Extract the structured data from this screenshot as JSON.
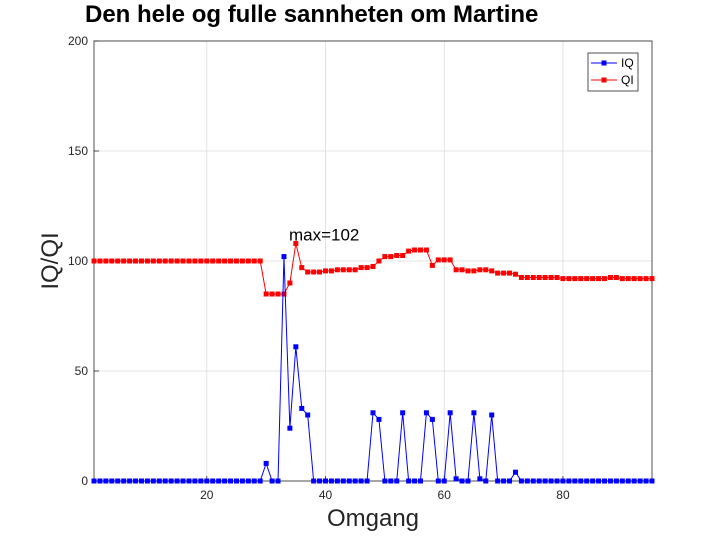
{
  "chart_data": {
    "type": "line",
    "title": "Den hele og fulle sannheten om Martine",
    "xlabel": "Omgang",
    "ylabel": "IQ/QI",
    "xlim": [
      1,
      95
    ],
    "ylim": [
      0,
      200
    ],
    "xticks": [
      20,
      40,
      60,
      80
    ],
    "yticks": [
      0,
      50,
      100,
      150,
      200
    ],
    "grid": true,
    "legend_position": "top-right",
    "annotation": {
      "text": "max=102",
      "x": 33,
      "y": 102
    },
    "x": [
      1,
      2,
      3,
      4,
      5,
      6,
      7,
      8,
      9,
      10,
      11,
      12,
      13,
      14,
      15,
      16,
      17,
      18,
      19,
      20,
      21,
      22,
      23,
      24,
      25,
      26,
      27,
      28,
      29,
      30,
      31,
      32,
      33,
      34,
      35,
      36,
      37,
      38,
      39,
      40,
      41,
      42,
      43,
      44,
      45,
      46,
      47,
      48,
      49,
      50,
      51,
      52,
      53,
      54,
      55,
      56,
      57,
      58,
      59,
      60,
      61,
      62,
      63,
      64,
      65,
      66,
      67,
      68,
      69,
      70,
      71,
      72,
      73,
      74,
      75,
      76,
      77,
      78,
      79,
      80,
      81,
      82,
      83,
      84,
      85,
      86,
      87,
      88,
      89,
      90,
      91,
      92,
      93,
      94,
      95
    ],
    "series": [
      {
        "name": "IQ",
        "color": "#0000ff",
        "values": [
          0,
          0,
          0,
          0,
          0,
          0,
          0,
          0,
          0,
          0,
          0,
          0,
          0,
          0,
          0,
          0,
          0,
          0,
          0,
          0,
          0,
          0,
          0,
          0,
          0,
          0,
          0,
          0,
          0,
          8,
          0,
          0,
          102,
          24,
          61,
          33,
          30,
          0,
          0,
          0,
          0,
          0,
          0,
          0,
          0,
          0,
          0,
          31,
          28,
          0,
          0,
          0,
          31,
          0,
          0,
          0,
          31,
          28,
          0,
          0,
          31,
          1,
          0,
          0,
          31,
          1,
          0,
          30,
          0,
          0,
          0,
          4,
          0,
          0,
          0,
          0,
          0,
          0,
          0,
          0,
          0,
          0,
          0,
          0,
          0,
          0,
          0,
          0,
          0,
          0,
          0,
          0,
          0,
          0,
          0
        ]
      },
      {
        "name": "QI",
        "color": "#ff0000",
        "values": [
          100,
          100,
          100,
          100,
          100,
          100,
          100,
          100,
          100,
          100,
          100,
          100,
          100,
          100,
          100,
          100,
          100,
          100,
          100,
          100,
          100,
          100,
          100,
          100,
          100,
          100,
          100,
          100,
          100,
          85,
          85,
          85,
          85,
          90,
          108,
          97,
          95,
          95,
          95,
          95.5,
          95.5,
          96,
          96,
          96,
          96,
          97,
          97,
          97.5,
          100,
          102,
          102,
          102.5,
          102.5,
          104.5,
          105,
          105,
          105,
          98,
          100.5,
          100.5,
          100.5,
          96,
          96,
          95.5,
          95.5,
          96,
          96,
          95.5,
          94.5,
          94.5,
          94.5,
          94,
          92.5,
          92.5,
          92.5,
          92.5,
          92.5,
          92.5,
          92.5,
          92,
          92,
          92,
          92,
          92,
          92,
          92,
          92,
          92.5,
          92.5,
          92,
          92,
          92,
          92,
          92,
          92
        ]
      }
    ]
  }
}
